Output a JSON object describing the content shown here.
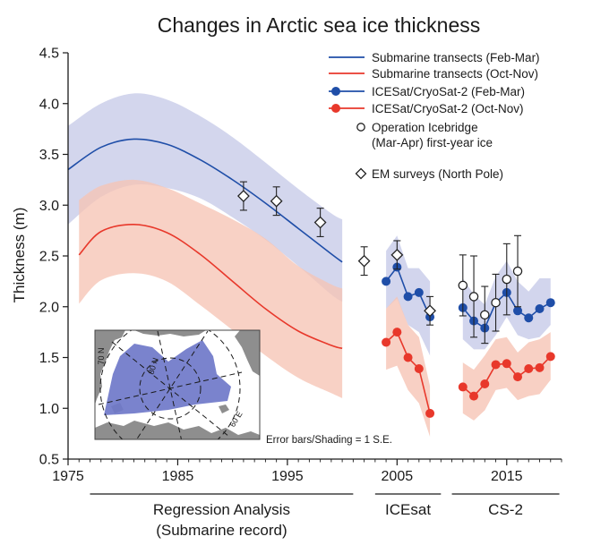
{
  "chart_data": {
    "type": "line",
    "title": "Changes in Arctic sea ice thickness",
    "xlabel": "",
    "ylabel": "Thickness (m)",
    "xlim": [
      1975,
      2020
    ],
    "ylim": [
      0.5,
      4.5
    ],
    "x_ticks": [
      1975,
      1985,
      1995,
      2005,
      2015
    ],
    "y_ticks": [
      "0.5",
      "1.0",
      "1.5",
      "2.0",
      "2.5",
      "3.0",
      "3.5",
      "4.0",
      "4.5"
    ],
    "grid": false,
    "legend_position": "top-right",
    "series": [
      {
        "name": "Submarine transects (Feb-Mar)",
        "color": "#1f4ea8",
        "band_color": "#c7cbe8",
        "x": [
          1975,
          1978,
          1981,
          1984,
          1987,
          1990,
          1993,
          1996,
          1999,
          2000
        ],
        "y": [
          3.35,
          3.57,
          3.65,
          3.6,
          3.45,
          3.25,
          3.02,
          2.77,
          2.52,
          2.44
        ],
        "lower": [
          2.81,
          3.08,
          3.2,
          3.17,
          3.07,
          2.88,
          2.66,
          2.4,
          2.12,
          2.05
        ],
        "upper": [
          3.78,
          4.0,
          4.1,
          4.04,
          3.88,
          3.67,
          3.42,
          3.16,
          2.92,
          2.86
        ]
      },
      {
        "name": "Submarine transects (Oct-Nov)",
        "color": "#e8382b",
        "band_color": "#f6c4b5",
        "x": [
          1976,
          1978,
          1981,
          1984,
          1987,
          1990,
          1993,
          1996,
          1999,
          2000
        ],
        "y": [
          2.51,
          2.74,
          2.81,
          2.73,
          2.52,
          2.25,
          1.98,
          1.76,
          1.62,
          1.59
        ],
        "lower": [
          2.03,
          2.26,
          2.33,
          2.25,
          2.02,
          1.77,
          1.52,
          1.3,
          1.15,
          1.1
        ],
        "upper": [
          3.05,
          3.19,
          3.25,
          3.17,
          3.02,
          2.86,
          2.67,
          2.4,
          2.22,
          2.18
        ]
      },
      {
        "name": "ICESat/CryoSat-2 (Feb-Mar)",
        "color": "#1f4ea8",
        "band_color": "#c7cbe8",
        "segments": [
          {
            "x": [
              2004,
              2005,
              2006,
              2007,
              2008
            ],
            "y": [
              2.25,
              2.39,
              2.1,
              2.14,
              1.9
            ],
            "lower": [
              1.98,
              2.08,
              1.82,
              1.75,
              1.52
            ],
            "upper": [
              2.55,
              2.7,
              2.38,
              2.38,
              2.25
            ]
          },
          {
            "x": [
              2011,
              2012,
              2013,
              2014,
              2015,
              2016,
              2017,
              2018,
              2019
            ],
            "y": [
              1.99,
              1.86,
              1.79,
              2.04,
              2.14,
              1.96,
              1.89,
              1.98,
              2.04
            ],
            "lower": [
              1.68,
              1.58,
              1.58,
              1.72,
              1.9,
              1.72,
              1.68,
              1.7,
              1.82
            ],
            "upper": [
              2.28,
              2.12,
              2.02,
              2.3,
              2.45,
              2.25,
              2.15,
              2.28,
              2.28
            ]
          }
        ]
      },
      {
        "name": "ICESat/CryoSat-2 (Oct-Nov)",
        "color": "#e8382b",
        "band_color": "#f6c4b5",
        "segments": [
          {
            "x": [
              2004,
              2005,
              2006,
              2007,
              2008
            ],
            "y": [
              1.65,
              1.75,
              1.5,
              1.39,
              0.95
            ],
            "lower": [
              1.38,
              1.42,
              1.18,
              1.05,
              0.72
            ],
            "upper": [
              1.98,
              2.1,
              1.82,
              1.7,
              1.22
            ]
          },
          {
            "x": [
              2011,
              2012,
              2013,
              2014,
              2015,
              2016,
              2017,
              2018,
              2019
            ],
            "y": [
              1.21,
              1.12,
              1.24,
              1.43,
              1.44,
              1.31,
              1.39,
              1.4,
              1.51
            ],
            "lower": [
              0.95,
              0.88,
              0.98,
              1.18,
              1.2,
              1.08,
              1.12,
              1.14,
              1.28
            ],
            "upper": [
              1.45,
              1.38,
              1.52,
              1.68,
              1.7,
              1.55,
              1.65,
              1.68,
              1.75
            ]
          }
        ]
      },
      {
        "name": "Operation Icebridge (Mar-Apr) first-year ice",
        "legend_lines": [
          "Operation Icebridge",
          "(Mar-Apr) first-year ice"
        ],
        "x": [
          2011,
          2012,
          2013,
          2014,
          2015,
          2016
        ],
        "y": [
          2.21,
          2.1,
          1.92,
          2.04,
          2.27,
          2.35
        ],
        "err": [
          0.3,
          0.4,
          0.28,
          0.28,
          0.35,
          0.35
        ]
      },
      {
        "name": "EM surveys (North Pole)",
        "x": [
          1991,
          1994,
          1998,
          2002,
          2005,
          2008
        ],
        "y": [
          3.09,
          3.04,
          2.83,
          2.45,
          2.51,
          1.96
        ],
        "err": [
          0.14,
          0.14,
          0.14,
          0.14,
          0.14,
          0.14
        ]
      }
    ],
    "annotations": [
      "Error bars/Shading = 1 S.E."
    ],
    "periods": [
      {
        "label_lines": [
          "Regression Analysis",
          "(Submarine record)"
        ],
        "x_range": [
          1977,
          2001
        ]
      },
      {
        "label_lines": [
          "ICEsat"
        ],
        "x_range": [
          2003,
          2009
        ]
      },
      {
        "label_lines": [
          "CS-2"
        ],
        "x_range": [
          2010,
          2019.8
        ]
      }
    ],
    "inset_map": {
      "labels": [
        "70 N",
        "80 N",
        "60 E"
      ]
    }
  }
}
